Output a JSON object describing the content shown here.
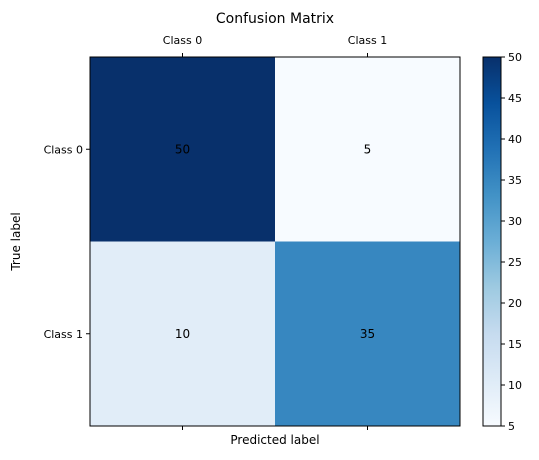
{
  "chart_data": {
    "type": "heatmap",
    "title": "Confusion Matrix",
    "xlabel": "Predicted label",
    "ylabel": "True label",
    "x_categories": [
      "Class 0",
      "Class 1"
    ],
    "y_categories": [
      "Class 0",
      "Class 1"
    ],
    "x_tick_position": "top",
    "values": [
      [
        50,
        5
      ],
      [
        10,
        35
      ]
    ],
    "colormap": "Blues",
    "colormap_stops": [
      "#f7fbff",
      "#deebf7",
      "#c6dbef",
      "#9ecae1",
      "#6baed6",
      "#4292c6",
      "#2171b5",
      "#08519c",
      "#08306b"
    ],
    "vmin": 5,
    "vmax": 50,
    "colorbar_ticks": [
      5,
      10,
      15,
      20,
      25,
      30,
      35,
      40,
      45,
      50
    ],
    "grid": false
  }
}
